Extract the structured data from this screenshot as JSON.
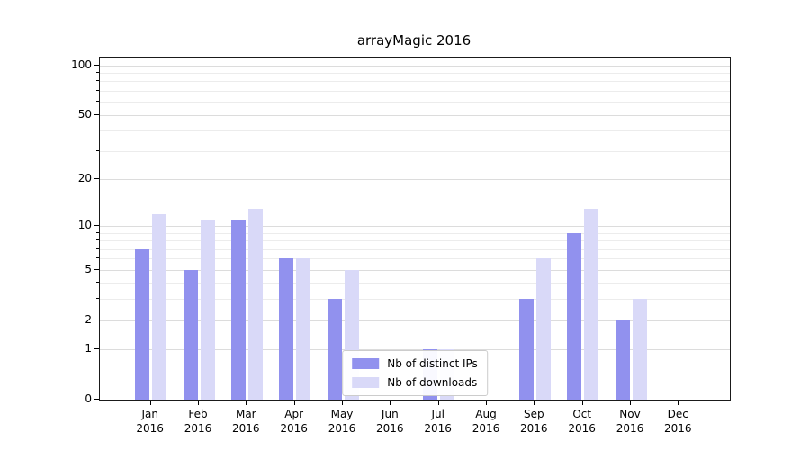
{
  "chart_data": {
    "type": "bar",
    "title": "arrayMagic 2016",
    "xlabel": "",
    "ylabel": "",
    "categories": [
      "Jan",
      "Feb",
      "Mar",
      "Apr",
      "May",
      "Jun",
      "Jul",
      "Aug",
      "Sep",
      "Oct",
      "Nov",
      "Dec"
    ],
    "year": "2016",
    "series": [
      {
        "name": "Nb of distinct IPs",
        "key": "distinct-ips",
        "color": "#9191ee",
        "values": [
          7,
          5,
          11,
          6,
          3,
          0,
          1,
          0,
          3,
          9,
          2,
          0
        ]
      },
      {
        "name": "Nb of downloads",
        "key": "downloads",
        "color": "#d9d9f8",
        "values": [
          12,
          11,
          13,
          6,
          5,
          0,
          1,
          0,
          6,
          13,
          3,
          0
        ]
      }
    ],
    "yscale": "log(1+x)",
    "ylim": [
      0,
      111
    ],
    "yticks": [
      0,
      1,
      2,
      5,
      10,
      20,
      50,
      100
    ],
    "minor_gridlines": [
      3,
      4,
      6,
      7,
      8,
      9,
      30,
      40,
      60,
      70,
      80,
      90
    ],
    "grid": true,
    "legend_position": "lower center",
    "colors": {
      "major_grid": "#dcdcdc",
      "minor_grid": "#ececec",
      "axis": "#1a1a1a",
      "text": "#000000"
    }
  }
}
